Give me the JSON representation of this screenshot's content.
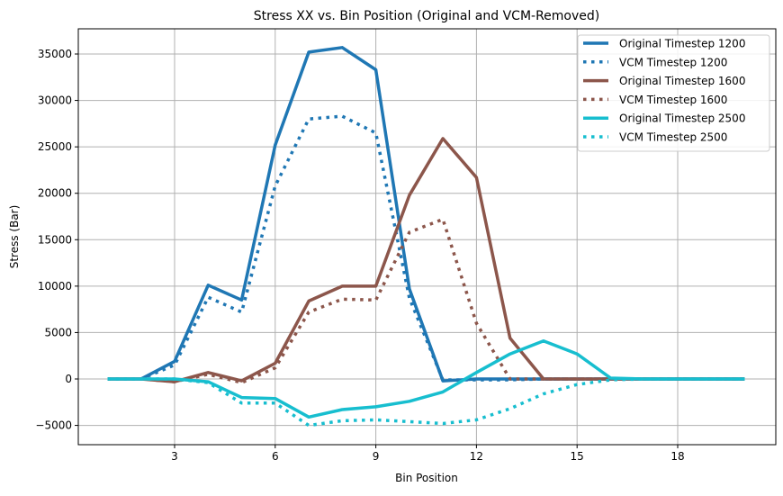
{
  "chart_data": {
    "type": "line",
    "title": "Stress XX vs. Bin Position (Original and VCM-Removed)",
    "xlabel": "Bin Position",
    "ylabel": "Stress (Bar)",
    "xlim": [
      0,
      21
    ],
    "ylim": [
      -7000,
      37500
    ],
    "xticks": [
      3,
      6,
      9,
      12,
      15,
      18
    ],
    "yticks": [
      -5000,
      0,
      5000,
      10000,
      15000,
      20000,
      25000,
      30000,
      35000
    ],
    "grid": true,
    "legend_position": "top-right",
    "x": [
      1,
      2,
      3,
      4,
      5,
      6,
      7,
      8,
      9,
      10,
      11,
      12,
      13,
      14,
      15,
      16,
      17,
      18,
      19,
      20
    ],
    "series": [
      {
        "name": "Original Timestep 1200",
        "color": "#1f77b4",
        "style": "solid",
        "values": [
          0,
          0,
          1900,
          10100,
          8500,
          25200,
          35200,
          35700,
          33300,
          9700,
          -200,
          0,
          0,
          0,
          0,
          0,
          0,
          0,
          0,
          0
        ]
      },
      {
        "name": "VCM Timestep 1200",
        "color": "#1f77b4",
        "style": "dotted",
        "values": [
          0,
          0,
          1500,
          8800,
          7200,
          20800,
          28000,
          28300,
          26500,
          8700,
          -100,
          -100,
          -100,
          0,
          0,
          0,
          0,
          0,
          0,
          0
        ]
      },
      {
        "name": "Original Timestep 1600",
        "color": "#8c564b",
        "style": "solid",
        "values": [
          0,
          0,
          -300,
          700,
          -200,
          1700,
          8400,
          10000,
          10000,
          19800,
          25900,
          21700,
          4400,
          0,
          0,
          0,
          0,
          0,
          0,
          0
        ]
      },
      {
        "name": "VCM Timestep 1600",
        "color": "#8c564b",
        "style": "dotted",
        "values": [
          0,
          0,
          -300,
          500,
          -400,
          1200,
          7200,
          8600,
          8500,
          15800,
          17200,
          6000,
          0,
          0,
          0,
          0,
          0,
          0,
          0,
          0
        ]
      },
      {
        "name": "Original Timestep 2500",
        "color": "#17becf",
        "style": "solid",
        "values": [
          0,
          0,
          0,
          -300,
          -2000,
          -2100,
          -4100,
          -3300,
          -3000,
          -2400,
          -1400,
          700,
          2700,
          4100,
          2700,
          100,
          0,
          0,
          0,
          0
        ]
      },
      {
        "name": "VCM Timestep 2500",
        "color": "#17becf",
        "style": "dotted",
        "values": [
          0,
          0,
          0,
          -400,
          -2600,
          -2600,
          -5000,
          -4500,
          -4400,
          -4600,
          -4800,
          -4400,
          -3200,
          -1600,
          -600,
          -100,
          0,
          0,
          0,
          0
        ]
      }
    ]
  }
}
